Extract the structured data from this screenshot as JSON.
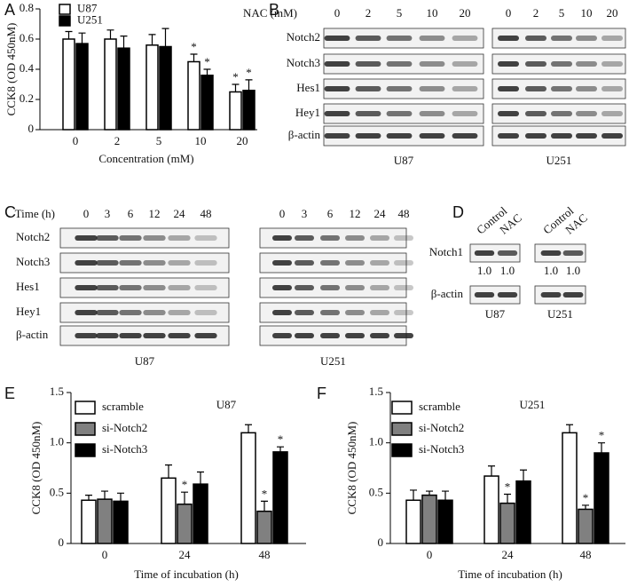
{
  "chart_data": [
    {
      "type": "bar",
      "panel": "A",
      "y_label": "CCK8 (OD 450nM)",
      "x_label": "Concentration (mM)",
      "categories": [
        "0",
        "2",
        "5",
        "10",
        "20"
      ],
      "series": [
        {
          "name": "U87",
          "color": "#ffffff",
          "values": [
            0.6,
            0.6,
            0.56,
            0.45,
            0.25
          ],
          "errors": [
            0.05,
            0.06,
            0.07,
            0.05,
            0.05
          ],
          "significance": [
            null,
            null,
            null,
            "*",
            "*"
          ]
        },
        {
          "name": "U251",
          "color": "#000000",
          "values": [
            0.57,
            0.54,
            0.55,
            0.36,
            0.26
          ],
          "errors": [
            0.07,
            0.08,
            0.12,
            0.04,
            0.07
          ],
          "significance": [
            null,
            null,
            null,
            "*",
            "*"
          ]
        }
      ],
      "ylim": [
        0,
        0.8
      ],
      "yticks": [
        0,
        0.2,
        0.4,
        0.6,
        0.8
      ],
      "legend": "upper left"
    },
    {
      "type": "bar",
      "panel": "E",
      "title": "U87",
      "y_label": "CCK8 (OD 450nM)",
      "x_label": "Time of incubation (h)",
      "categories": [
        "0",
        "24",
        "48"
      ],
      "series": [
        {
          "name": "scramble",
          "color": "#ffffff",
          "values": [
            0.43,
            0.65,
            1.1
          ],
          "errors": [
            0.05,
            0.13,
            0.08
          ],
          "significance": [
            null,
            null,
            null
          ]
        },
        {
          "name": "si-Notch2",
          "color": "#808080",
          "values": [
            0.44,
            0.39,
            0.32
          ],
          "errors": [
            0.08,
            0.12,
            0.1
          ],
          "significance": [
            null,
            "*",
            "*"
          ]
        },
        {
          "name": "si-Notch3",
          "color": "#000000",
          "values": [
            0.42,
            0.59,
            0.91
          ],
          "errors": [
            0.08,
            0.12,
            0.05
          ],
          "significance": [
            null,
            null,
            "*"
          ]
        }
      ],
      "ylim": [
        0,
        1.5
      ],
      "yticks": [
        0,
        0.5,
        {
          "value": 1,
          "label": "1.0"
        },
        1.5
      ],
      "legend": "upper left"
    },
    {
      "type": "bar",
      "panel": "F",
      "title": "U251",
      "y_label": "CCK8 (OD 450nM)",
      "x_label": "Time of incubation (h)",
      "categories": [
        "0",
        "24",
        "48"
      ],
      "series": [
        {
          "name": "scramble",
          "color": "#ffffff",
          "values": [
            0.43,
            0.67,
            1.1
          ],
          "errors": [
            0.1,
            0.1,
            0.08
          ],
          "significance": [
            null,
            null,
            null
          ]
        },
        {
          "name": "si-Notch2",
          "color": "#808080",
          "values": [
            0.48,
            0.4,
            0.34
          ],
          "errors": [
            0.04,
            0.09,
            0.04
          ],
          "significance": [
            null,
            "*",
            "*"
          ]
        },
        {
          "name": "si-Notch3",
          "color": "#000000",
          "values": [
            0.43,
            0.62,
            0.9
          ],
          "errors": [
            0.09,
            0.11,
            0.1
          ],
          "significance": [
            null,
            null,
            "*"
          ]
        }
      ],
      "ylim": [
        0,
        1.5
      ],
      "yticks": [
        0,
        0.5,
        {
          "value": 1,
          "label": "1.0"
        },
        1.5
      ],
      "legend": "upper left"
    }
  ],
  "blots": [
    {
      "panel": "B",
      "header": "NAC (mM)",
      "lanes": [
        "0",
        "2",
        "5",
        "10",
        "20"
      ],
      "rows": [
        "Notch2",
        "Notch3",
        "Hes1",
        "Hey1",
        "β-actin"
      ],
      "cells": [
        "U87",
        "U251"
      ]
    },
    {
      "panel": "C",
      "header": "Time (h)",
      "lanes": [
        "0",
        "3",
        "6",
        "12",
        "24",
        "48"
      ],
      "rows": [
        "Notch2",
        "Notch3",
        "Hes1",
        "Hey1",
        "β-actin"
      ],
      "cells": [
        "U87",
        "U251"
      ]
    },
    {
      "panel": "D",
      "lanes": [
        "Control",
        "NAC"
      ],
      "rows": [
        "Notch1",
        "β-actin"
      ],
      "cells": [
        "U87",
        "U251"
      ],
      "ratios": [
        [
          "1.0",
          "1.0"
        ],
        [
          "1.0",
          "1.0"
        ]
      ]
    }
  ]
}
